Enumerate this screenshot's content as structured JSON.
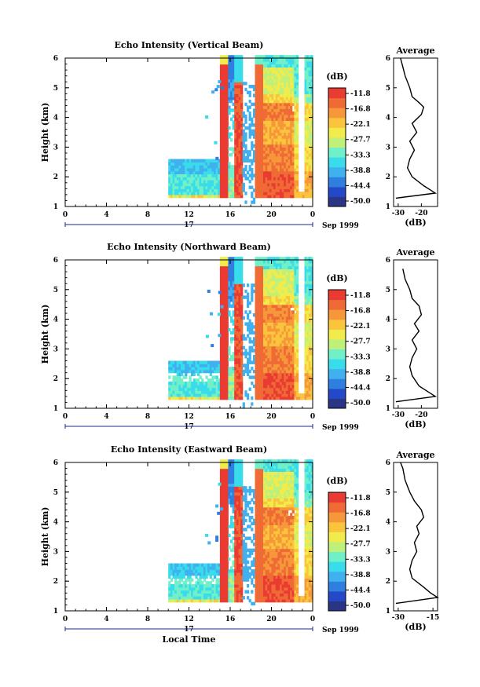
{
  "colors": {
    "colormap": [
      "#2a3585",
      "#2349c8",
      "#2f7fe0",
      "#40b0ee",
      "#38dcea",
      "#6ff0c8",
      "#bff07a",
      "#f1ec4c",
      "#fac43c",
      "#f6983a",
      "#ef6a35",
      "#ea3b32"
    ],
    "line": "#000000"
  },
  "chart_data": [
    {
      "type": "heatmap",
      "title": "Echo Intensity (Vertical Beam)",
      "ylabel": "Height (km)",
      "xlabel": "",
      "xlim": [
        0,
        24
      ],
      "ylim": [
        1,
        6
      ],
      "xticks": [
        "0",
        "4",
        "8",
        "12",
        "16",
        "20",
        "0"
      ],
      "yticks": [
        "1",
        "2",
        "3",
        "4",
        "5",
        "6"
      ],
      "date_label": "Sep 1999",
      "day_label": "17",
      "colorbar": {
        "unit": "(dB)",
        "levels": [
          "-11.8",
          "-16.8",
          "-22.1",
          "-27.7",
          "-33.3",
          "-38.8",
          "-44.4",
          "-50.0"
        ]
      },
      "average_profile": {
        "title": "Average",
        "xlabel": "(dB)",
        "xticks": [
          "-30",
          "-20"
        ],
        "xlim": [
          -32,
          -13
        ],
        "ylim": [
          1,
          6
        ],
        "yticks": [
          "1",
          "2",
          "3",
          "4",
          "5",
          "6"
        ],
        "points": [
          [
            -31,
            1.28
          ],
          [
            -14,
            1.45
          ],
          [
            -16,
            1.55
          ],
          [
            -19,
            1.7
          ],
          [
            -24,
            2.0
          ],
          [
            -26,
            2.3
          ],
          [
            -25,
            2.6
          ],
          [
            -23,
            2.9
          ],
          [
            -25,
            3.2
          ],
          [
            -22,
            3.5
          ],
          [
            -24,
            3.8
          ],
          [
            -20,
            4.1
          ],
          [
            -19,
            4.35
          ],
          [
            -21,
            4.5
          ],
          [
            -24,
            4.7
          ],
          [
            -25,
            5.0
          ],
          [
            -27,
            5.4
          ],
          [
            -28,
            5.7
          ],
          [
            -29,
            6.0
          ]
        ]
      }
    },
    {
      "type": "heatmap",
      "title": "Echo Intensity (Northward Beam)",
      "ylabel": "Height (km)",
      "xlabel": "",
      "xlim": [
        0,
        24
      ],
      "ylim": [
        1,
        6
      ],
      "xticks": [
        "0",
        "4",
        "8",
        "12",
        "16",
        "20",
        "0"
      ],
      "yticks": [
        "1",
        "2",
        "3",
        "4",
        "5",
        "6"
      ],
      "date_label": "Sep 1999",
      "day_label": "17",
      "colorbar": {
        "unit": "(dB)",
        "levels": [
          "-11.8",
          "-16.8",
          "-22.1",
          "-27.7",
          "-33.3",
          "-38.8",
          "-44.4",
          "-50.0"
        ]
      },
      "average_profile": {
        "title": "Average",
        "xlabel": "(dB)",
        "xticks": [
          "-30",
          "-20"
        ],
        "xlim": [
          -32,
          -13
        ],
        "ylim": [
          1,
          6
        ],
        "yticks": [
          "1",
          "2",
          "3",
          "4",
          "5",
          "6"
        ],
        "points": [
          [
            -31,
            1.22
          ],
          [
            -14,
            1.4
          ],
          [
            -17,
            1.55
          ],
          [
            -21,
            1.75
          ],
          [
            -24,
            2.1
          ],
          [
            -25,
            2.4
          ],
          [
            -24,
            2.7
          ],
          [
            -22,
            3.0
          ],
          [
            -24,
            3.3
          ],
          [
            -21,
            3.6
          ],
          [
            -23,
            3.85
          ],
          [
            -20,
            4.15
          ],
          [
            -21,
            4.45
          ],
          [
            -24,
            4.7
          ],
          [
            -25,
            5.0
          ],
          [
            -27,
            5.35
          ],
          [
            -28,
            5.7
          ]
        ]
      }
    },
    {
      "type": "heatmap",
      "title": "Echo Intensity (Eastward Beam)",
      "ylabel": "Height (km)",
      "xlabel": "Local Time",
      "xlim": [
        0,
        24
      ],
      "ylim": [
        1,
        6
      ],
      "xticks": [
        "0",
        "4",
        "8",
        "12",
        "16",
        "20",
        "0"
      ],
      "yticks": [
        "1",
        "2",
        "3",
        "4",
        "5",
        "6"
      ],
      "date_label": "Sep 1999",
      "day_label": "17",
      "colorbar": {
        "unit": "(dB)",
        "levels": [
          "-11.8",
          "-16.8",
          "-22.1",
          "-27.7",
          "-33.3",
          "-38.8",
          "-44.4",
          "-50.0"
        ]
      },
      "average_profile": {
        "title": "Average",
        "xlabel": "(dB)",
        "xticks": [
          "-30",
          "-15"
        ],
        "xlim": [
          -32,
          -13
        ],
        "ylim": [
          1,
          6
        ],
        "yticks": [
          "1",
          "2",
          "3",
          "4",
          "5",
          "6"
        ],
        "points": [
          [
            -31,
            1.25
          ],
          [
            -13,
            1.45
          ],
          [
            -16,
            1.6
          ],
          [
            -19,
            1.8
          ],
          [
            -24,
            2.1
          ],
          [
            -25,
            2.4
          ],
          [
            -24,
            2.7
          ],
          [
            -22,
            3.0
          ],
          [
            -23,
            3.3
          ],
          [
            -21,
            3.6
          ],
          [
            -22,
            3.85
          ],
          [
            -19,
            4.15
          ],
          [
            -20,
            4.4
          ],
          [
            -23,
            4.7
          ],
          [
            -25,
            5.0
          ],
          [
            -27,
            5.4
          ],
          [
            -28,
            5.8
          ],
          [
            -29,
            6.0
          ]
        ]
      }
    }
  ]
}
